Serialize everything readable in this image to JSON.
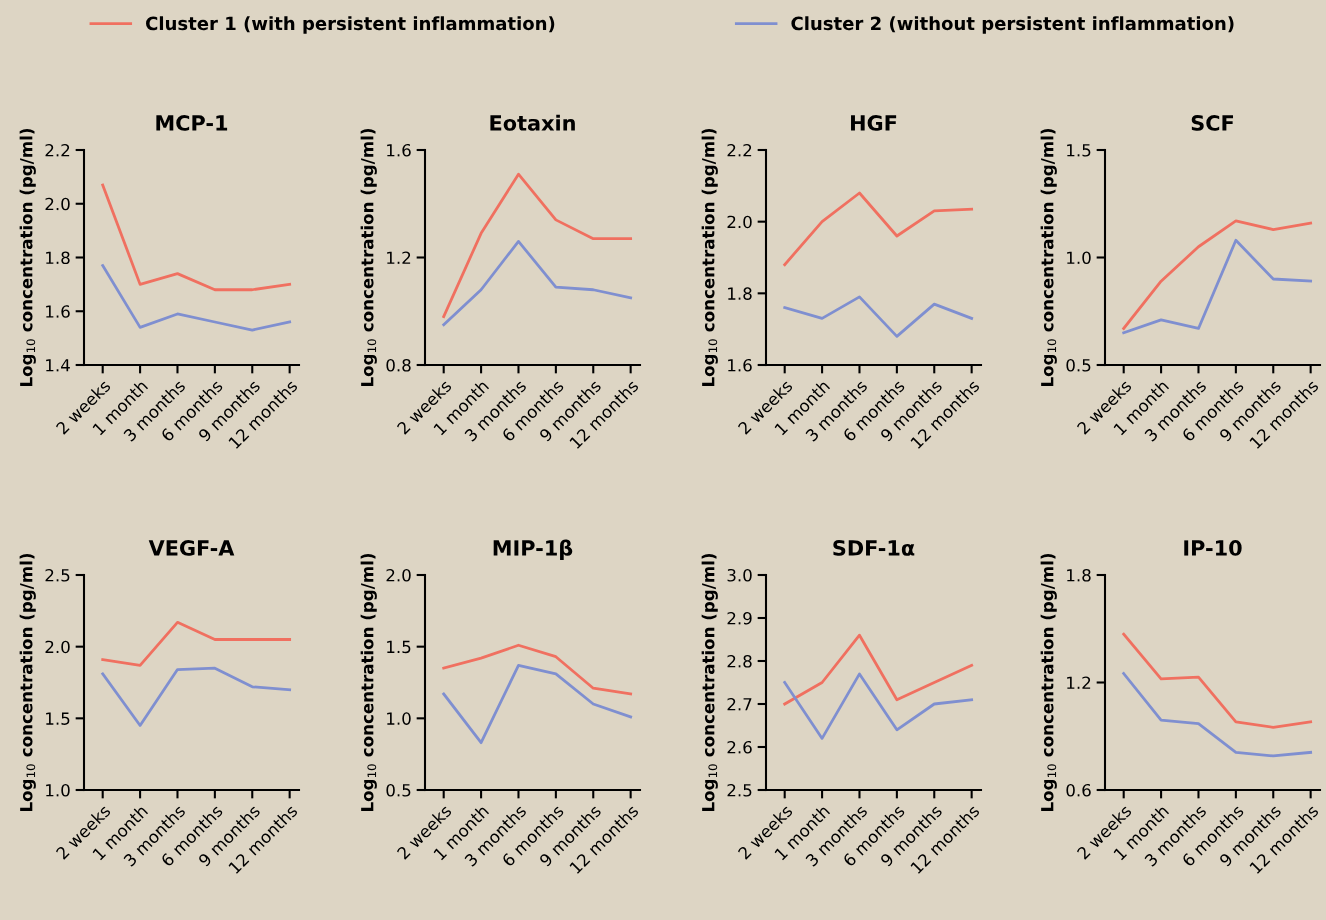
{
  "chart_data": [
    {
      "type": "line",
      "title": "MCP-1",
      "ylabel": "Log$_{10}$ concentration (pg/ml)",
      "categories": [
        "2 weeks",
        "1 month",
        "3 months",
        "6 months",
        "9 months",
        "12 months"
      ],
      "legend": "top",
      "grid": false,
      "ylim": [
        1.4,
        2.2
      ],
      "yticks": [
        1.4,
        1.6,
        1.8,
        {
          "value": 2,
          "label": "2.0"
        },
        2.2
      ],
      "series": [
        {
          "name": "Cluster 1 (with persistent inflammation)",
          "color": "#f07060",
          "values": [
            2.07,
            1.7,
            1.74,
            1.68,
            1.68,
            1.7
          ]
        },
        {
          "name": "Cluster 2 (without persistent inflammation)",
          "color": "#7f8fd0",
          "values": [
            1.77,
            1.54,
            1.59,
            1.56,
            1.53,
            1.56
          ]
        }
      ]
    },
    {
      "type": "line",
      "title": "Eotaxin",
      "ylabel": "Log$_{10}$ concentration (pg/ml)",
      "categories": [
        "2 weeks",
        "1 month",
        "3 months",
        "6 months",
        "9 months",
        "12 months"
      ],
      "ylim": [
        0.8,
        1.6
      ],
      "yticks": [
        0.8,
        1.2,
        1.6
      ],
      "series": [
        {
          "color": "#f07060",
          "values": [
            0.98,
            1.29,
            1.51,
            1.34,
            1.27,
            1.27
          ]
        },
        {
          "color": "#7f8fd0",
          "values": [
            0.95,
            1.08,
            1.26,
            1.09,
            1.08,
            1.05
          ]
        }
      ]
    },
    {
      "type": "line",
      "title": "HGF",
      "ylabel": "Log$_{10}$ concentration (pg/ml)",
      "categories": [
        "2 weeks",
        "1 month",
        "3 months",
        "6 months",
        "9 months",
        "12 months"
      ],
      "ylim": [
        1.6,
        2.2
      ],
      "yticks": [
        1.6,
        1.8,
        {
          "value": 2,
          "label": "2.0"
        },
        2.2
      ],
      "series": [
        {
          "color": "#f07060",
          "values": [
            1.88,
            2.0,
            2.08,
            1.96,
            2.03,
            2.035
          ]
        },
        {
          "color": "#7f8fd0",
          "values": [
            1.76,
            1.73,
            1.79,
            1.68,
            1.77,
            1.73
          ]
        }
      ]
    },
    {
      "type": "line",
      "title": "SCF",
      "ylabel": "Log$_{10}$ concentration (pg/ml)",
      "categories": [
        "2 weeks",
        "1 month",
        "3 months",
        "6 months",
        "9 months",
        "12 months"
      ],
      "ylim": [
        0.5,
        1.5
      ],
      "yticks": [
        0.5,
        {
          "value": 1,
          "label": "1.0"
        },
        1.5
      ],
      "series": [
        {
          "color": "#f07060",
          "values": [
            0.67,
            0.89,
            1.05,
            1.17,
            1.13,
            1.16
          ]
        },
        {
          "color": "#7f8fd0",
          "values": [
            0.65,
            0.71,
            0.67,
            1.08,
            0.9,
            0.89
          ]
        }
      ]
    },
    {
      "type": "line",
      "title": "VEGF-A",
      "ylabel": "Log$_{10}$ concentration (pg/ml)",
      "categories": [
        "2 weeks",
        "1 month",
        "3 months",
        "6 months",
        "9 months",
        "12 months"
      ],
      "ylim": [
        1.0,
        2.5
      ],
      "yticks": [
        {
          "value": 1,
          "label": "1.0"
        },
        1.5,
        {
          "value": 2,
          "label": "2.0"
        },
        2.5
      ],
      "series": [
        {
          "color": "#f07060",
          "values": [
            1.91,
            1.87,
            2.17,
            2.05,
            2.05,
            2.05
          ]
        },
        {
          "color": "#7f8fd0",
          "values": [
            1.81,
            1.45,
            1.84,
            1.85,
            1.72,
            1.7
          ]
        }
      ]
    },
    {
      "type": "line",
      "title": "MIP-1β",
      "ylabel": "Log$_{10}$ concentration (pg/ml)",
      "categories": [
        "2 weeks",
        "1 month",
        "3 months",
        "6 months",
        "9 months",
        "12 months"
      ],
      "ylim": [
        0.5,
        2.0
      ],
      "yticks": [
        0.5,
        {
          "value": 1,
          "label": "1.0"
        },
        1.5,
        {
          "value": 2,
          "label": "2.0"
        }
      ],
      "series": [
        {
          "color": "#f07060",
          "values": [
            1.35,
            1.42,
            1.51,
            1.43,
            1.21,
            1.17
          ]
        },
        {
          "color": "#7f8fd0",
          "values": [
            1.17,
            0.83,
            1.37,
            1.31,
            1.1,
            1.01
          ]
        }
      ]
    },
    {
      "type": "line",
      "title": "SDF-1α",
      "ylabel": "Log$_{10}$ concentration (pg/ml)",
      "categories": [
        "2 weeks",
        "1 month",
        "3 months",
        "6 months",
        "9 months",
        "12 months"
      ],
      "ylim": [
        2.5,
        3.0
      ],
      "yticks": [
        2.5,
        2.6,
        2.7,
        2.8,
        2.9,
        {
          "value": 3,
          "label": "3.0"
        }
      ],
      "series": [
        {
          "color": "#f07060",
          "values": [
            2.7,
            2.75,
            2.86,
            2.71,
            2.75,
            2.79
          ]
        },
        {
          "color": "#7f8fd0",
          "values": [
            2.75,
            2.62,
            2.77,
            2.64,
            2.7,
            2.71
          ]
        }
      ]
    },
    {
      "type": "line",
      "title": "IP-10",
      "ylabel": "Log$_{10}$ concentration (pg/ml)",
      "categories": [
        "2 weeks",
        "1 month",
        "3 months",
        "6 months",
        "9 months",
        "12 months"
      ],
      "ylim": [
        0.6,
        1.8
      ],
      "yticks": [
        0.6,
        1.2,
        1.8
      ],
      "series": [
        {
          "color": "#f07060",
          "values": [
            1.47,
            1.22,
            1.23,
            0.98,
            0.95,
            0.98
          ]
        },
        {
          "color": "#7f8fd0",
          "values": [
            1.25,
            0.99,
            0.97,
            0.81,
            0.79,
            0.81
          ]
        }
      ]
    }
  ]
}
